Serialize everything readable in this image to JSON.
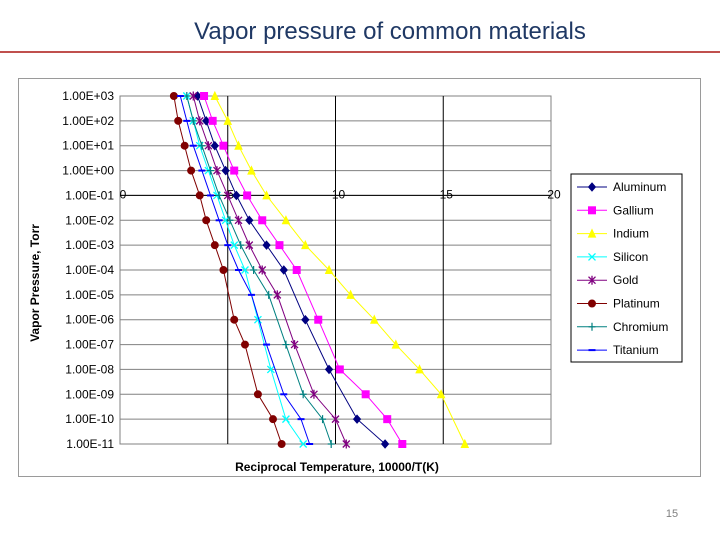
{
  "slide": {
    "title": "Vapor pressure of common materials",
    "page_number": "15"
  },
  "chart_data": {
    "type": "line",
    "title": "",
    "xlabel": "Reciprocal Temperature, 10000/T(K)",
    "ylabel": "Vapor Pressure, Torr",
    "x_scale": "linear",
    "y_scale": "log",
    "xlim": [
      0,
      20
    ],
    "ylim": [
      1e-11,
      1000
    ],
    "x_ticks": [
      "0",
      "5",
      "10",
      "15",
      "20"
    ],
    "y_ticks": [
      "1.00E+03",
      "1.00E+02",
      "1.00E+01",
      "1.00E+00",
      "1.00E-01",
      "1.00E-02",
      "1.00E-03",
      "1.00E-04",
      "1.00E-05",
      "1.00E-06",
      "1.00E-07",
      "1.00E-08",
      "1.00E-09",
      "1.00E-10",
      "1.00E-11"
    ],
    "x_axis_crosses_at": 0.1,
    "grid": "major x and y",
    "legend_position": "right",
    "series": [
      {
        "name": "Aluminum",
        "color": "#000080",
        "marker": "diamond",
        "x": [
          3.6,
          4.0,
          4.4,
          4.9,
          5.4,
          6.0,
          6.8,
          7.6,
          8.6,
          9.7,
          11.0,
          12.3
        ],
        "y": [
          1000,
          100,
          10,
          1,
          0.1,
          0.01,
          0.001,
          0.0001,
          1e-06,
          1e-08,
          1e-10,
          1e-11
        ]
      },
      {
        "name": "Gallium",
        "color": "#ff00ff",
        "marker": "square",
        "x": [
          3.9,
          4.3,
          4.8,
          5.3,
          5.9,
          6.6,
          7.4,
          8.2,
          9.2,
          10.2,
          11.4,
          12.4,
          13.1
        ],
        "y": [
          1000,
          100,
          10,
          1,
          0.1,
          0.01,
          0.001,
          0.0001,
          1e-06,
          1e-08,
          1e-09,
          1e-10,
          1e-11
        ]
      },
      {
        "name": "Indium",
        "color": "#ffff00",
        "marker": "triangle",
        "x": [
          4.4,
          5.0,
          5.5,
          6.1,
          6.8,
          7.7,
          8.6,
          9.7,
          10.7,
          11.8,
          12.8,
          13.9,
          14.9,
          16.0
        ],
        "y": [
          1000,
          100,
          10,
          1,
          0.1,
          0.01,
          0.001,
          0.0001,
          1e-05,
          1e-06,
          1e-07,
          1e-08,
          1e-09,
          1e-11
        ]
      },
      {
        "name": "Silicon",
        "color": "#00ffff",
        "marker": "x",
        "x": [
          3.1,
          3.4,
          3.7,
          4.1,
          4.5,
          4.9,
          5.3,
          5.8,
          6.4,
          7.0,
          7.7,
          8.5
        ],
        "y": [
          1000,
          100,
          10,
          1,
          0.1,
          0.01,
          0.001,
          0.0001,
          1e-06,
          1e-08,
          1e-10,
          1e-11
        ]
      },
      {
        "name": "Gold",
        "color": "#800080",
        "marker": "star",
        "x": [
          3.4,
          3.7,
          4.1,
          4.5,
          5.0,
          5.5,
          6.0,
          6.6,
          7.3,
          8.1,
          9.0,
          10.0,
          10.5
        ],
        "y": [
          1000,
          100,
          10,
          1,
          0.1,
          0.01,
          0.001,
          0.0001,
          1e-05,
          1e-07,
          1e-09,
          1e-10,
          1e-11
        ]
      },
      {
        "name": "Platinum",
        "color": "#800000",
        "marker": "circle",
        "x": [
          2.5,
          2.7,
          3.0,
          3.3,
          3.7,
          4.0,
          4.4,
          4.8,
          5.3,
          5.8,
          6.4,
          7.1,
          7.5
        ],
        "y": [
          1000,
          100,
          10,
          1,
          0.1,
          0.01,
          0.001,
          0.0001,
          1e-06,
          1e-07,
          1e-09,
          1e-10,
          1e-11
        ]
      },
      {
        "name": "Chromium",
        "color": "#008080",
        "marker": "plus",
        "x": [
          3.1,
          3.4,
          3.8,
          4.2,
          4.6,
          5.1,
          5.6,
          6.2,
          6.9,
          7.7,
          8.5,
          9.4,
          9.8
        ],
        "y": [
          1000,
          100,
          10,
          1,
          0.1,
          0.01,
          0.001,
          0.0001,
          1e-05,
          1e-07,
          1e-09,
          1e-10,
          1e-11
        ]
      },
      {
        "name": "Titanium",
        "color": "#0000ff",
        "marker": "dash",
        "x": [
          2.8,
          3.1,
          3.4,
          3.8,
          4.2,
          4.6,
          5.0,
          5.5,
          6.1,
          6.8,
          7.6,
          8.4,
          8.8
        ],
        "y": [
          1000,
          100,
          10,
          1,
          0.1,
          0.01,
          0.001,
          0.0001,
          1e-05,
          1e-07,
          1e-09,
          1e-10,
          1e-11
        ]
      }
    ]
  }
}
